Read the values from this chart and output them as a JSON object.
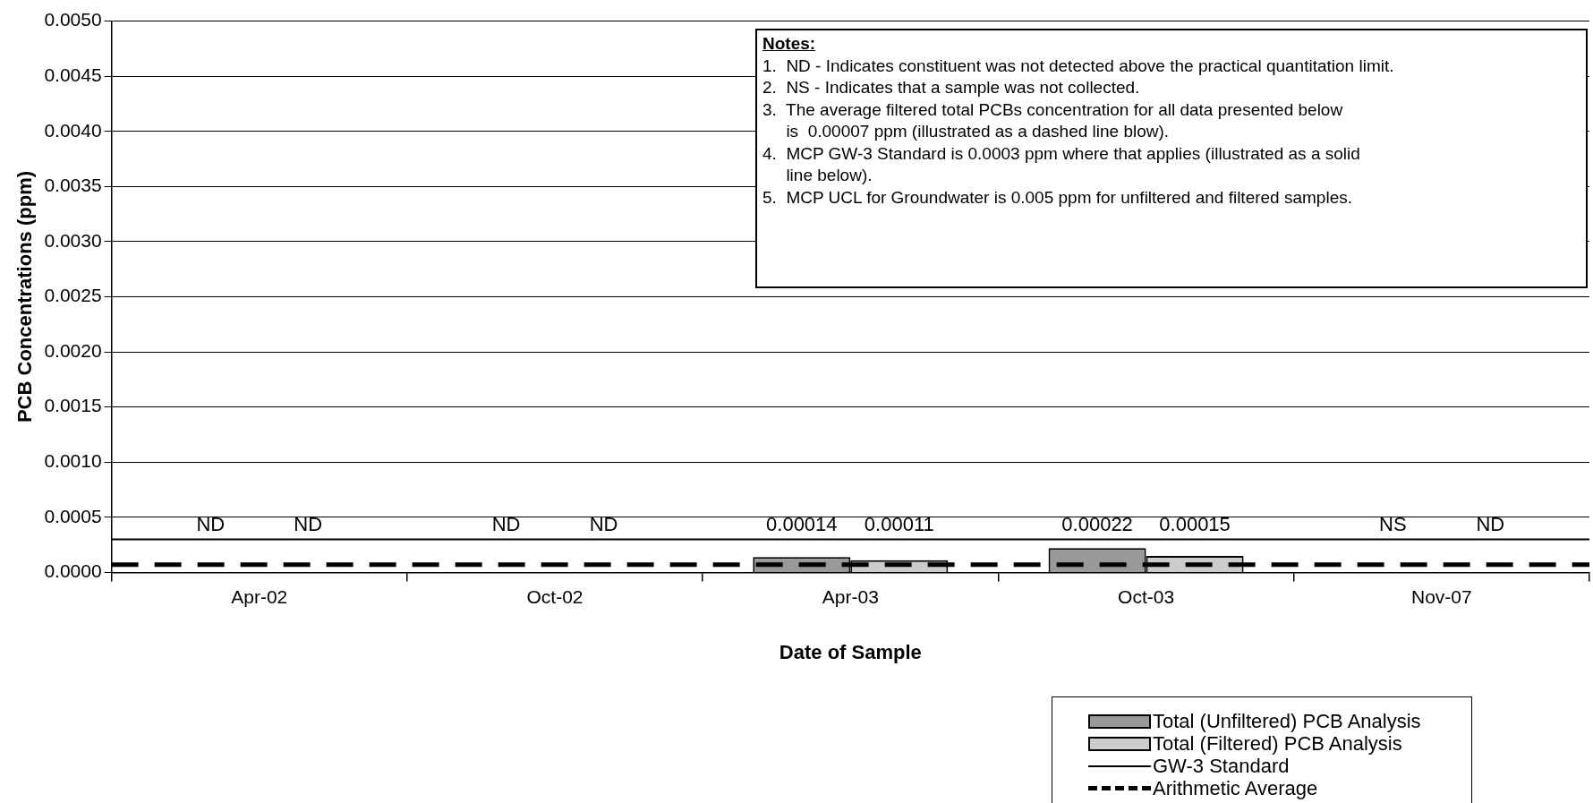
{
  "chart_data": {
    "type": "bar",
    "xlabel": "Date of Sample",
    "ylabel": "PCB Concentrations (ppm)",
    "categories": [
      "Apr-02",
      "Oct-02",
      "Apr-03",
      "Oct-03",
      "Nov-07"
    ],
    "series": [
      {
        "name": "Total (Unfiltered) PCB Analysis",
        "color": "#999999",
        "values": [
          null,
          null,
          0.00014,
          0.00022,
          null
        ],
        "value_labels": [
          "ND",
          "ND",
          "0.00014",
          "0.00022",
          "NS"
        ]
      },
      {
        "name": "Total (Filtered) PCB Analysis",
        "color": "#cccccc",
        "values": [
          null,
          null,
          0.00011,
          0.00015,
          null
        ],
        "value_labels": [
          "ND",
          "ND",
          "0.00011",
          "0.00015",
          "ND"
        ]
      }
    ],
    "ylim": [
      0,
      0.005
    ],
    "yticks": [
      {
        "value": 0,
        "label": "0.0000"
      },
      {
        "value": 0.0005,
        "label": "0.0005"
      },
      {
        "value": 0.001,
        "label": "0.0010"
      },
      {
        "value": 0.0015,
        "label": "0.0015"
      },
      {
        "value": 0.002,
        "label": "0.0020"
      },
      {
        "value": 0.0025,
        "label": "0.0025"
      },
      {
        "value": 0.003,
        "label": "0.0030"
      },
      {
        "value": 0.0035,
        "label": "0.0035"
      },
      {
        "value": 0.004,
        "label": "0.0040"
      },
      {
        "value": 0.0045,
        "label": "0.0045"
      },
      {
        "value": 0.005,
        "label": "0.0050"
      }
    ],
    "ref_lines": [
      {
        "axis": "y",
        "value": 0.0003,
        "label": "GW-3 Standard",
        "color": "#000000",
        "line_style": "solid"
      },
      {
        "axis": "y",
        "value": 7e-05,
        "label": "Arithmetic Average",
        "color": "#000000",
        "line_style": "dashed"
      }
    ],
    "annotations": [
      "Notes:",
      "1.  ND - Indicates constituent was not detected above the practical quantitation limit.",
      "2.  NS - Indicates that a sample was not collected.",
      "3.  The average filtered total PCBs concentration for all data presented below",
      "     is  0.00007 ppm (illustrated as a dashed line blow).",
      "4.  MCP GW-3 Standard is 0.0003 ppm where that applies (illustrated as a solid",
      "     line below).",
      "5.  MCP UCL for Groundwater is 0.005 ppm for unfiltered and filtered samples."
    ],
    "grid": "y",
    "legend": "bottom right"
  }
}
